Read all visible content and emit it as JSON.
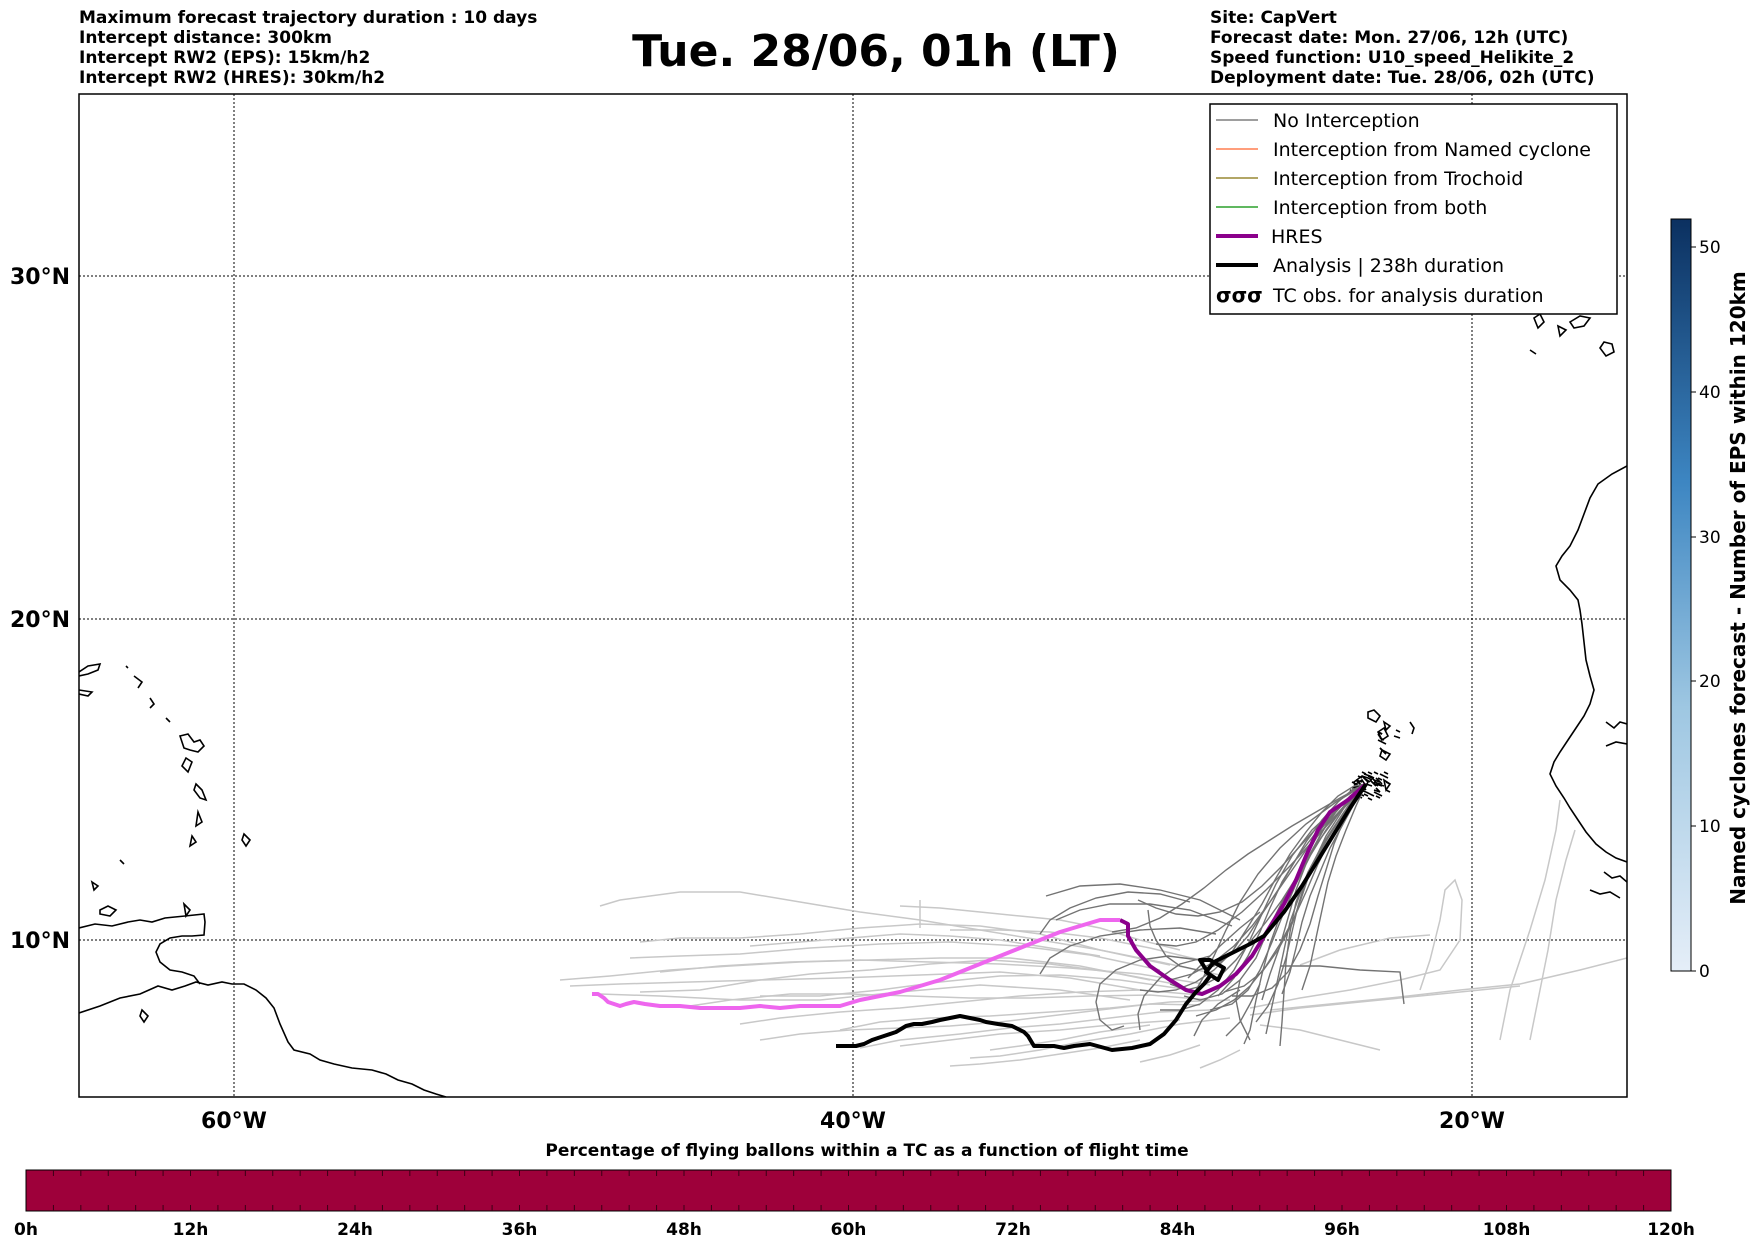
{
  "header": {
    "left_lines": [
      "Maximum forecast trajectory duration : 10 days",
      "Intercept distance: 300km",
      "Intercept RW2 (EPS):  15km/h2",
      "Intercept RW2 (HRES): 30km/h2"
    ],
    "title": "Tue. 28/06, 01h (LT)",
    "right_lines": [
      "Site: CapVert",
      "Forecast date: Mon. 27/06, 12h (UTC)",
      "Speed function: U10_speed_Helikite_2",
      "Deployment date: Tue. 28/06, 02h (UTC)"
    ]
  },
  "map": {
    "lat_labels": [
      "30°N",
      "20°N",
      "10°N"
    ],
    "lon_labels": [
      "60°W",
      "40°W",
      "20°W"
    ]
  },
  "legend": {
    "items": [
      {
        "label": "No Interception",
        "color": "#7f7f7f",
        "style": "thin-line"
      },
      {
        "label": "Interception from Named cyclone",
        "color": "#ff7f50",
        "style": "thin-line"
      },
      {
        "label": "Interception from Trochoid",
        "color": "#998833",
        "style": "thin-line"
      },
      {
        "label": "Interception from both",
        "color": "#2ca02c",
        "style": "thin-line"
      },
      {
        "label": "HRES",
        "color": "#8b008b",
        "style": "thick-line"
      },
      {
        "label": "Analysis | 238h duration",
        "color": "#000000",
        "style": "thick-line"
      },
      {
        "label": "TC obs. for analysis duration",
        "color": "#000000",
        "style": "cyclone-symbols",
        "symbols": "σσσ"
      }
    ]
  },
  "colorbar_right": {
    "label": "Named cyclones forecast - Number of EPS within 120km",
    "ticks": [
      "0",
      "10",
      "20",
      "30",
      "40",
      "50"
    ],
    "color_low": "#e5eef8",
    "color_high": "#0b3060"
  },
  "colorbar_bottom": {
    "title": "Percentage of flying ballons within a TC as a function of flight time",
    "ticks": [
      "0h",
      "12h",
      "24h",
      "36h",
      "48h",
      "60h",
      "72h",
      "84h",
      "96h",
      "108h",
      "120h"
    ],
    "color": "#9e003a"
  }
}
